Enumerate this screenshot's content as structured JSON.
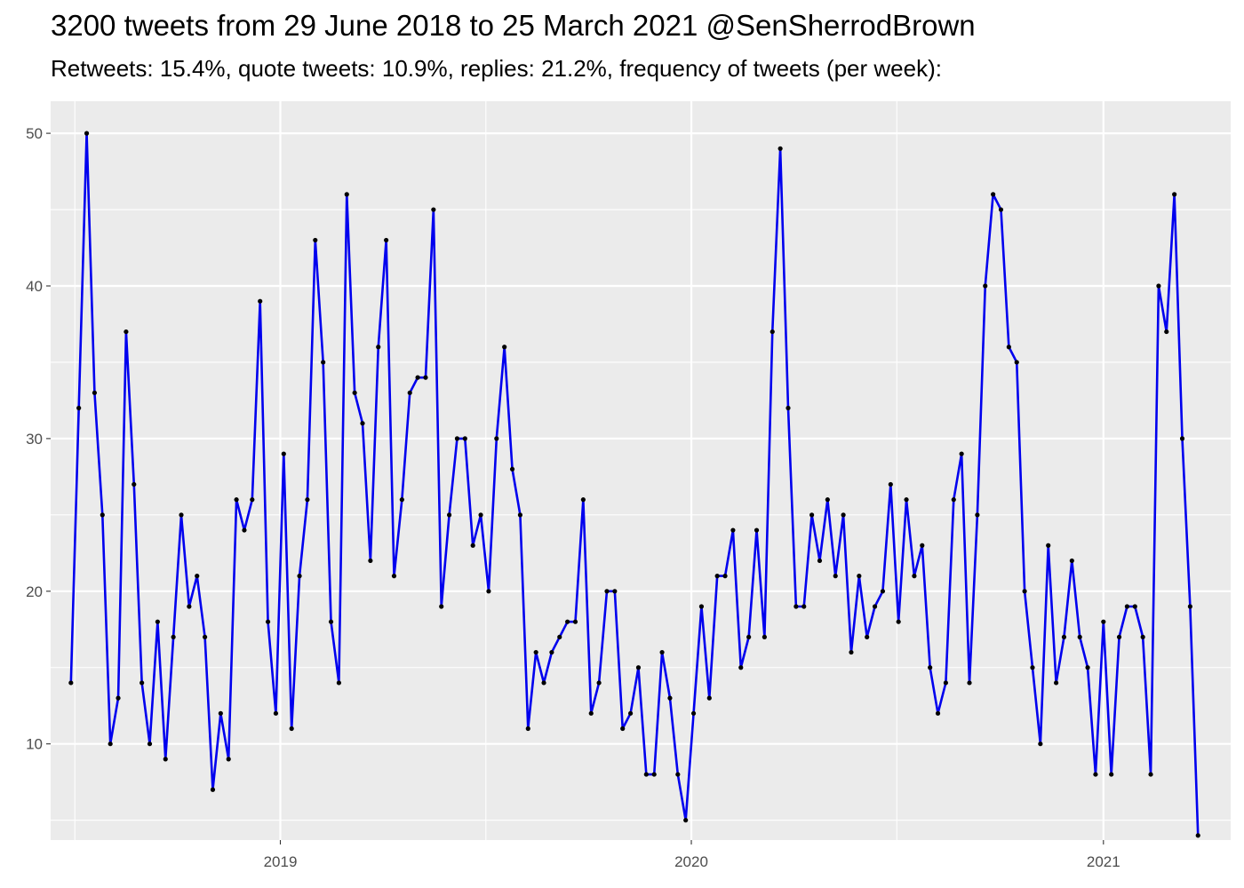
{
  "chart_data": {
    "type": "line",
    "title": "3200 tweets from 29 June 2018 to 25 March 2021 @SenSherrodBrown",
    "subtitle": "Retweets: 15.4%, quote tweets: 10.9%, replies: 21.2%, frequency of tweets (per week):",
    "xlabel": "",
    "ylabel": "",
    "x_ticks": [
      {
        "date": "2019-01-01",
        "label": "2019"
      },
      {
        "date": "2020-01-01",
        "label": "2020"
      },
      {
        "date": "2021-01-01",
        "label": "2021"
      }
    ],
    "y_ticks": [
      10,
      20,
      30,
      40,
      50
    ],
    "ylim": [
      3.7,
      52.1
    ],
    "xlim": [
      "2018-06-11",
      "2021-04-24"
    ],
    "grid": true,
    "series": [
      {
        "color": "#0000ee",
        "point_color": "#000000",
        "x": [
          "2018-06-29",
          "2018-07-06",
          "2018-07-13",
          "2018-07-20",
          "2018-07-27",
          "2018-08-03",
          "2018-08-10",
          "2018-08-17",
          "2018-08-24",
          "2018-08-31",
          "2018-09-07",
          "2018-09-14",
          "2018-09-21",
          "2018-09-28",
          "2018-10-05",
          "2018-10-12",
          "2018-10-19",
          "2018-10-26",
          "2018-11-02",
          "2018-11-09",
          "2018-11-16",
          "2018-11-23",
          "2018-11-30",
          "2018-12-07",
          "2018-12-14",
          "2018-12-21",
          "2018-12-28",
          "2019-01-04",
          "2019-01-11",
          "2019-01-18",
          "2019-01-25",
          "2019-02-01",
          "2019-02-08",
          "2019-02-15",
          "2019-02-22",
          "2019-03-01",
          "2019-03-08",
          "2019-03-15",
          "2019-03-22",
          "2019-03-29",
          "2019-04-05",
          "2019-04-12",
          "2019-04-19",
          "2019-04-26",
          "2019-05-03",
          "2019-05-10",
          "2019-05-17",
          "2019-05-24",
          "2019-05-31",
          "2019-06-07",
          "2019-06-14",
          "2019-06-21",
          "2019-06-28",
          "2019-07-05",
          "2019-07-12",
          "2019-07-19",
          "2019-07-26",
          "2019-08-02",
          "2019-08-09",
          "2019-08-16",
          "2019-08-23",
          "2019-08-30",
          "2019-09-06",
          "2019-09-13",
          "2019-09-20",
          "2019-09-27",
          "2019-10-04",
          "2019-10-11",
          "2019-10-18",
          "2019-10-25",
          "2019-11-01",
          "2019-11-08",
          "2019-11-15",
          "2019-11-22",
          "2019-11-29",
          "2019-12-06",
          "2019-12-13",
          "2019-12-20",
          "2019-12-27",
          "2020-01-03",
          "2020-01-10",
          "2020-01-17",
          "2020-01-24",
          "2020-01-31",
          "2020-02-07",
          "2020-02-14",
          "2020-02-21",
          "2020-02-28",
          "2020-03-06",
          "2020-03-13",
          "2020-03-20",
          "2020-03-27",
          "2020-04-03",
          "2020-04-10",
          "2020-04-17",
          "2020-04-24",
          "2020-05-01",
          "2020-05-08",
          "2020-05-15",
          "2020-05-22",
          "2020-05-29",
          "2020-06-05",
          "2020-06-12",
          "2020-06-19",
          "2020-06-26",
          "2020-07-03",
          "2020-07-10",
          "2020-07-17",
          "2020-07-24",
          "2020-07-31",
          "2020-08-07",
          "2020-08-14",
          "2020-08-21",
          "2020-08-28",
          "2020-09-04",
          "2020-09-11",
          "2020-09-18",
          "2020-09-25",
          "2020-10-02",
          "2020-10-09",
          "2020-10-16",
          "2020-10-23",
          "2020-10-30",
          "2020-11-06",
          "2020-11-13",
          "2020-11-20",
          "2020-11-27",
          "2020-12-04",
          "2020-12-11",
          "2020-12-18",
          "2020-12-25",
          "2021-01-01",
          "2021-01-08",
          "2021-01-15",
          "2021-01-22",
          "2021-01-29",
          "2021-02-05",
          "2021-02-12",
          "2021-02-19",
          "2021-02-26",
          "2021-03-05",
          "2021-03-12",
          "2021-03-19",
          "2021-03-26"
        ],
        "y": [
          14,
          32,
          50,
          33,
          25,
          10,
          13,
          37,
          27,
          14,
          10,
          18,
          9,
          17,
          25,
          19,
          21,
          17,
          7,
          12,
          9,
          26,
          24,
          26,
          39,
          18,
          12,
          29,
          11,
          21,
          26,
          43,
          35,
          18,
          14,
          46,
          33,
          31,
          22,
          36,
          43,
          21,
          26,
          33,
          34,
          34,
          45,
          19,
          25,
          30,
          30,
          23,
          25,
          20,
          30,
          36,
          28,
          25,
          11,
          16,
          14,
          16,
          17,
          18,
          18,
          26,
          12,
          14,
          20,
          20,
          11,
          12,
          15,
          8,
          8,
          16,
          13,
          8,
          5,
          12,
          19,
          13,
          21,
          21,
          24,
          15,
          17,
          24,
          17,
          37,
          49,
          32,
          19,
          19,
          25,
          22,
          26,
          21,
          25,
          16,
          21,
          17,
          19,
          20,
          27,
          18,
          26,
          21,
          23,
          15,
          12,
          14,
          26,
          29,
          14,
          25,
          40,
          46,
          45,
          36,
          35,
          20,
          15,
          10,
          23,
          14,
          17,
          22,
          17,
          15,
          8,
          18,
          8,
          17,
          19,
          19,
          17,
          8,
          40,
          37,
          46,
          30,
          19,
          4
        ]
      }
    ]
  }
}
